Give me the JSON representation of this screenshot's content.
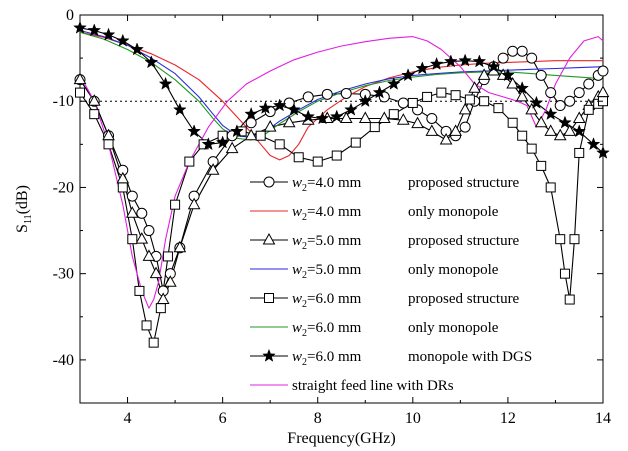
{
  "chart_data": {
    "type": "line",
    "xlabel": "Frequency(GHz)",
    "ylabel": "S11(dB)",
    "ylabel_main": "S",
    "ylabel_sub": "11",
    "ylabel_unit": "(dB)",
    "xlim": [
      3,
      14
    ],
    "ylim": [
      -45,
      0
    ],
    "xticks": [
      4,
      6,
      8,
      10,
      12,
      14
    ],
    "yticks": [
      0,
      -10,
      -20,
      -30,
      -40
    ],
    "reference_line": -10,
    "grid": false,
    "legend_position": "center-right",
    "series": [
      {
        "var": "w",
        "sub": "2",
        "value": "=4.0 mm",
        "desc": "proposed structure",
        "color": "#000000",
        "marker": "circle",
        "x": [
          3.0,
          3.3,
          3.6,
          3.9,
          4.1,
          4.3,
          4.45,
          4.6,
          4.75,
          4.9,
          5.1,
          5.4,
          5.8,
          6.2,
          6.6,
          7.0,
          7.4,
          7.8,
          8.2,
          8.6,
          9.0,
          9.4,
          9.8,
          10.1,
          10.4,
          10.7,
          10.9,
          11.1,
          11.3,
          11.5,
          11.7,
          11.9,
          12.1,
          12.3,
          12.5,
          12.7,
          12.9,
          13.1,
          13.3,
          13.5,
          13.7,
          13.9,
          14.0
        ],
        "y": [
          -7.5,
          -10,
          -14,
          -18,
          -21,
          -23,
          -25,
          -28,
          -32,
          -30,
          -27,
          -21,
          -17,
          -14,
          -12.5,
          -11.2,
          -10.2,
          -9.5,
          -9.2,
          -9.1,
          -9.2,
          -9.5,
          -10.2,
          -11,
          -12,
          -13.5,
          -14,
          -13,
          -10,
          -7.5,
          -6,
          -5,
          -4.2,
          -4.2,
          -5,
          -7,
          -9,
          -10.5,
          -10,
          -9,
          -8,
          -7,
          -6.5
        ]
      },
      {
        "var": "w",
        "sub": "2",
        "value": "=4.0 mm",
        "desc": "only monopole",
        "color": "#e8262a",
        "marker": "none",
        "x": [
          3.0,
          3.5,
          4.0,
          4.5,
          5.0,
          5.5,
          6.0,
          6.5,
          6.8,
          7.0,
          7.2,
          7.4,
          7.6,
          7.8,
          8.2,
          8.6,
          9.0,
          9.5,
          10.0,
          10.5,
          11.0,
          11.5,
          12.0,
          12.5,
          13.0,
          13.5,
          14.0
        ],
        "y": [
          -2,
          -2.6,
          -3.5,
          -4.5,
          -5.8,
          -7.5,
          -10,
          -13,
          -15,
          -16.3,
          -16.8,
          -16.3,
          -15,
          -13,
          -11,
          -9.5,
          -8.3,
          -7.3,
          -6.6,
          -6.1,
          -5.8,
          -5.6,
          -5.5,
          -5.4,
          -5.3,
          -5.3,
          -5.3
        ]
      },
      {
        "var": "w",
        "sub": "2",
        "value": "=5.0 mm",
        "desc": "proposed structure",
        "color": "#000000",
        "marker": "triangle",
        "x": [
          3.0,
          3.3,
          3.6,
          3.9,
          4.1,
          4.3,
          4.45,
          4.6,
          4.75,
          4.9,
          5.1,
          5.4,
          5.8,
          6.2,
          6.6,
          7.0,
          7.4,
          7.8,
          8.2,
          8.6,
          9.0,
          9.4,
          9.8,
          10.1,
          10.4,
          10.7,
          10.9,
          11.1,
          11.3,
          11.5,
          11.7,
          11.9,
          12.1,
          12.3,
          12.5,
          12.7,
          12.9,
          13.1,
          13.3,
          13.5,
          13.7,
          13.9,
          14.0
        ],
        "y": [
          -7.5,
          -10,
          -14,
          -19,
          -23,
          -26,
          -28,
          -30,
          -33,
          -31,
          -27,
          -22,
          -18,
          -15.5,
          -14,
          -13,
          -12.5,
          -12.2,
          -12,
          -12,
          -12,
          -12,
          -12.2,
          -12.6,
          -13.5,
          -14.5,
          -13.5,
          -11,
          -8.5,
          -7,
          -6.5,
          -7,
          -8,
          -9.5,
          -11,
          -12.5,
          -13.5,
          -14,
          -13.5,
          -12,
          -10.5,
          -9.5,
          -9
        ]
      },
      {
        "var": "w",
        "sub": "2",
        "value": "=5.0 mm",
        "desc": "only monopole",
        "color": "#2a2ae0",
        "marker": "none",
        "x": [
          3.0,
          3.5,
          4.0,
          4.5,
          5.0,
          5.5,
          5.8,
          6.0,
          6.3,
          6.6,
          6.9,
          7.2,
          7.6,
          8.0,
          8.5,
          9.0,
          9.5,
          10.0,
          10.5,
          11.0,
          11.5,
          12.0,
          12.5,
          13.0,
          13.5,
          14.0
        ],
        "y": [
          -1.8,
          -2.5,
          -3.5,
          -5,
          -6.8,
          -9.5,
          -11.5,
          -12.8,
          -14,
          -14.2,
          -13.5,
          -12.3,
          -11,
          -9.8,
          -8.8,
          -8,
          -7.4,
          -7,
          -6.8,
          -6.6,
          -6.5,
          -6.4,
          -6.3,
          -6.2,
          -6.1,
          -6.0
        ]
      },
      {
        "var": "w",
        "sub": "2",
        "value": "=6.0 mm",
        "desc": "proposed structure",
        "color": "#000000",
        "marker": "square",
        "x": [
          3.0,
          3.3,
          3.6,
          3.9,
          4.1,
          4.25,
          4.4,
          4.55,
          4.7,
          4.85,
          5.0,
          5.3,
          5.6,
          6.0,
          6.4,
          6.8,
          7.2,
          7.6,
          8.0,
          8.4,
          8.8,
          9.2,
          9.6,
          10.0,
          10.3,
          10.6,
          10.9,
          11.2,
          11.5,
          11.8,
          12.1,
          12.3,
          12.5,
          12.7,
          12.9,
          13.1,
          13.2,
          13.3,
          13.4,
          13.5,
          13.7,
          13.9,
          14.0
        ],
        "y": [
          -9,
          -11.5,
          -15,
          -20,
          -26,
          -32,
          -36,
          -38,
          -34,
          -28,
          -22,
          -17,
          -15,
          -14,
          -13.5,
          -14,
          -15,
          -16.5,
          -17,
          -16.3,
          -14.8,
          -13,
          -11.5,
          -10.2,
          -9.5,
          -9.0,
          -9.3,
          -9.8,
          -10,
          -10.8,
          -12.5,
          -14,
          -15.5,
          -17.5,
          -20,
          -26,
          -30,
          -33,
          -26,
          -16,
          -11,
          -10.3,
          -10
        ]
      },
      {
        "var": "w",
        "sub": "2",
        "value": "=6.0 mm",
        "desc": "only monopole",
        "color": "#1f9a1f",
        "marker": "none",
        "x": [
          3.0,
          3.5,
          4.0,
          4.5,
          5.0,
          5.5,
          5.8,
          6.0,
          6.3,
          6.6,
          6.9,
          7.2,
          7.6,
          8.0,
          8.5,
          9.0,
          9.5,
          10.0,
          10.5,
          11.0,
          11.5,
          12.0,
          12.5,
          13.0,
          13.5,
          14.0
        ],
        "y": [
          -2,
          -2.8,
          -4,
          -5.5,
          -7.5,
          -10,
          -12,
          -13.2,
          -14.3,
          -14.5,
          -13.8,
          -12.6,
          -11.2,
          -10,
          -9,
          -8.2,
          -7.6,
          -7.2,
          -6.9,
          -6.7,
          -6.6,
          -6.6,
          -6.8,
          -7,
          -7.2,
          -7.4
        ]
      },
      {
        "var": "w",
        "sub": "2",
        "value": "=6.0 mm",
        "desc": "monopole with DGS",
        "color": "#000000",
        "marker": "star",
        "x": [
          3.0,
          3.3,
          3.6,
          3.9,
          4.2,
          4.5,
          4.8,
          5.1,
          5.4,
          5.7,
          6.0,
          6.3,
          6.6,
          6.9,
          7.2,
          7.5,
          7.8,
          8.1,
          8.4,
          8.7,
          9.0,
          9.3,
          9.6,
          9.9,
          10.2,
          10.5,
          10.8,
          11.1,
          11.4,
          11.7,
          12.0,
          12.3,
          12.6,
          12.9,
          13.2,
          13.5,
          13.8,
          14.0
        ],
        "y": [
          -1.5,
          -1.8,
          -2.3,
          -3,
          -4,
          -5.5,
          -8,
          -11,
          -13.5,
          -15,
          -14.8,
          -13.5,
          -11.5,
          -10.8,
          -10.5,
          -11,
          -11.8,
          -12,
          -11.8,
          -11,
          -10,
          -9,
          -8,
          -7,
          -6.2,
          -5.7,
          -5.4,
          -5.3,
          -5.4,
          -6,
          -7,
          -8.5,
          -10.2,
          -11.5,
          -12.5,
          -13.5,
          -15,
          -16
        ]
      },
      {
        "var": "",
        "sub": "",
        "value": "",
        "desc": "straight feed line with DRs",
        "color": "#e020e0",
        "marker": "none",
        "x": [
          3.0,
          3.3,
          3.6,
          3.9,
          4.1,
          4.3,
          4.45,
          4.55,
          4.65,
          4.8,
          5.0,
          5.3,
          5.7,
          6.1,
          6.5,
          7.0,
          7.5,
          8.0,
          8.5,
          9.0,
          9.5,
          10.0,
          10.3,
          10.6,
          11.0,
          11.3,
          11.6,
          11.9,
          12.2,
          12.4,
          12.6,
          12.8,
          13.0,
          13.3,
          13.6,
          13.9,
          14.0
        ],
        "y": [
          -7,
          -10,
          -15,
          -22,
          -28,
          -32,
          -34,
          -33,
          -31,
          -26,
          -21,
          -17,
          -13,
          -10,
          -8,
          -6.5,
          -5.2,
          -4.3,
          -3.6,
          -3.1,
          -2.7,
          -2.5,
          -3,
          -4,
          -6,
          -8,
          -9,
          -9.5,
          -10,
          -10.5,
          -13,
          -11,
          -8,
          -5,
          -3,
          -2.5,
          -3
        ]
      }
    ]
  }
}
